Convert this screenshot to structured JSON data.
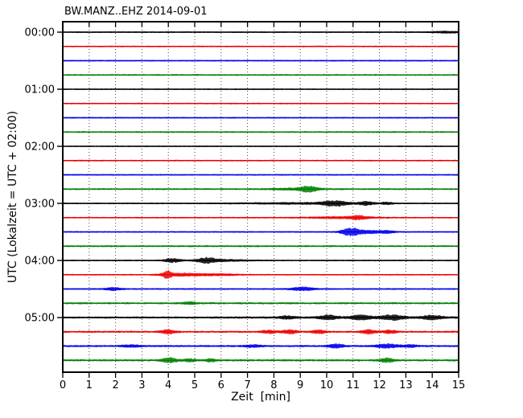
{
  "chart_data": {
    "type": "line",
    "variant": "helicorder-dayplot",
    "title": "BW.MANZ..EHZ 2014-09-01",
    "station_id": "BW.MANZ..EHZ",
    "date": "2014-09-01",
    "xlabel": "Zeit  [min]",
    "ylabel": "UTC (Lokalzeit = UTC + 02:00)",
    "x_ticks": [
      0,
      1,
      2,
      3,
      4,
      5,
      6,
      7,
      8,
      9,
      10,
      11,
      12,
      13,
      14,
      15
    ],
    "x_range_minutes": [
      0,
      15
    ],
    "minutes_per_row": 15,
    "grid": {
      "vertical_dotted": true,
      "horizontal": false
    },
    "hour_labels": [
      "00:00",
      "01:00",
      "02:00",
      "03:00",
      "04:00",
      "05:00"
    ],
    "row_color_cycle": [
      "#000000",
      "#ee0000",
      "#0000ee",
      "#008000"
    ],
    "frame_color": "#000000",
    "background_color": "#ffffff",
    "rows": [
      {
        "start": "00:00",
        "color": "#000000",
        "base_amp": 1.0,
        "events": [
          {
            "t": 14.5,
            "w": 1.0,
            "a": 1.1
          }
        ]
      },
      {
        "start": "00:15",
        "color": "#ee0000",
        "base_amp": 1.0,
        "events": []
      },
      {
        "start": "00:30",
        "color": "#0000ee",
        "base_amp": 1.0,
        "events": []
      },
      {
        "start": "00:45",
        "color": "#008000",
        "base_amp": 1.1,
        "events": []
      },
      {
        "start": "01:00",
        "color": "#000000",
        "base_amp": 0.9,
        "events": []
      },
      {
        "start": "01:15",
        "color": "#ee0000",
        "base_amp": 1.0,
        "events": []
      },
      {
        "start": "01:30",
        "color": "#0000ee",
        "base_amp": 1.0,
        "events": []
      },
      {
        "start": "01:45",
        "color": "#008000",
        "base_amp": 1.1,
        "events": []
      },
      {
        "start": "02:00",
        "color": "#000000",
        "base_amp": 0.9,
        "events": []
      },
      {
        "start": "02:15",
        "color": "#ee0000",
        "base_amp": 1.0,
        "events": []
      },
      {
        "start": "02:30",
        "color": "#0000ee",
        "base_amp": 1.0,
        "events": []
      },
      {
        "start": "02:45",
        "color": "#008000",
        "base_amp": 1.2,
        "events": [
          {
            "t": 8.8,
            "w": 1.6,
            "a": 1.0
          },
          {
            "t": 9.3,
            "w": 0.55,
            "a": 3.2
          }
        ]
      },
      {
        "start": "03:00",
        "color": "#000000",
        "base_amp": 1.0,
        "events": [
          {
            "t": 9.0,
            "w": 4.0,
            "a": 0.9
          },
          {
            "t": 10.3,
            "w": 0.8,
            "a": 3.0
          },
          {
            "t": 11.5,
            "w": 0.5,
            "a": 2.1
          },
          {
            "t": 12.3,
            "w": 0.4,
            "a": 1.3
          }
        ]
      },
      {
        "start": "03:15",
        "color": "#ee0000",
        "base_amp": 1.0,
        "events": [
          {
            "t": 10.6,
            "w": 2.2,
            "a": 1.2
          },
          {
            "t": 11.2,
            "w": 0.5,
            "a": 1.7
          }
        ]
      },
      {
        "start": "03:30",
        "color": "#0000ee",
        "base_amp": 1.0,
        "events": [
          {
            "t": 10.9,
            "w": 0.6,
            "a": 4.3
          },
          {
            "t": 11.5,
            "w": 1.0,
            "a": 2.0
          },
          {
            "t": 12.3,
            "w": 0.5,
            "a": 1.5
          }
        ]
      },
      {
        "start": "03:45",
        "color": "#008000",
        "base_amp": 1.2,
        "events": []
      },
      {
        "start": "04:00",
        "color": "#000000",
        "base_amp": 1.0,
        "events": [
          {
            "t": 4.15,
            "w": 0.55,
            "a": 2.4
          },
          {
            "t": 5.45,
            "w": 0.65,
            "a": 3.2
          },
          {
            "t": 6.3,
            "w": 1.5,
            "a": 1.0
          }
        ]
      },
      {
        "start": "04:15",
        "color": "#ee0000",
        "base_amp": 1.0,
        "events": [
          {
            "t": 3.95,
            "w": 0.28,
            "a": 4.3
          },
          {
            "t": 4.5,
            "w": 1.2,
            "a": 1.7
          },
          {
            "t": 5.8,
            "w": 1.5,
            "a": 1.0
          }
        ]
      },
      {
        "start": "04:30",
        "color": "#0000ee",
        "base_amp": 1.1,
        "events": [
          {
            "t": 1.9,
            "w": 0.5,
            "a": 1.7
          },
          {
            "t": 9.1,
            "w": 0.8,
            "a": 2.0
          }
        ]
      },
      {
        "start": "04:45",
        "color": "#008000",
        "base_amp": 1.3,
        "events": [
          {
            "t": 4.8,
            "w": 0.5,
            "a": 1.4
          }
        ]
      },
      {
        "start": "05:00",
        "color": "#000000",
        "base_amp": 1.3,
        "events": [
          {
            "t": 8.5,
            "w": 0.4,
            "a": 1.8
          },
          {
            "t": 10.05,
            "w": 0.5,
            "a": 2.4
          },
          {
            "t": 11.3,
            "w": 0.6,
            "a": 2.6
          },
          {
            "t": 12.5,
            "w": 0.7,
            "a": 2.8
          },
          {
            "t": 14.0,
            "w": 0.6,
            "a": 2.4
          },
          {
            "t": 11.5,
            "w": 6.0,
            "a": 0.6
          }
        ]
      },
      {
        "start": "05:15",
        "color": "#ee0000",
        "base_amp": 1.3,
        "events": [
          {
            "t": 4.0,
            "w": 0.45,
            "a": 2.4
          },
          {
            "t": 7.8,
            "w": 0.45,
            "a": 1.8
          },
          {
            "t": 8.6,
            "w": 0.5,
            "a": 2.2
          },
          {
            "t": 9.7,
            "w": 0.45,
            "a": 2.0
          },
          {
            "t": 11.6,
            "w": 0.5,
            "a": 2.4
          },
          {
            "t": 12.4,
            "w": 0.45,
            "a": 2.0
          }
        ]
      },
      {
        "start": "05:30",
        "color": "#0000ee",
        "base_amp": 1.3,
        "events": [
          {
            "t": 2.6,
            "w": 0.6,
            "a": 1.4
          },
          {
            "t": 7.2,
            "w": 0.6,
            "a": 1.4
          },
          {
            "t": 10.35,
            "w": 0.5,
            "a": 2.4
          },
          {
            "t": 12.3,
            "w": 0.8,
            "a": 2.4
          },
          {
            "t": 13.2,
            "w": 0.4,
            "a": 1.5
          }
        ]
      },
      {
        "start": "05:45",
        "color": "#008000",
        "base_amp": 1.4,
        "events": [
          {
            "t": 4.05,
            "w": 0.5,
            "a": 2.8
          },
          {
            "t": 4.8,
            "w": 0.4,
            "a": 1.6
          },
          {
            "t": 5.6,
            "w": 0.35,
            "a": 1.5
          },
          {
            "t": 12.3,
            "w": 0.45,
            "a": 2.4
          }
        ]
      }
    ]
  }
}
